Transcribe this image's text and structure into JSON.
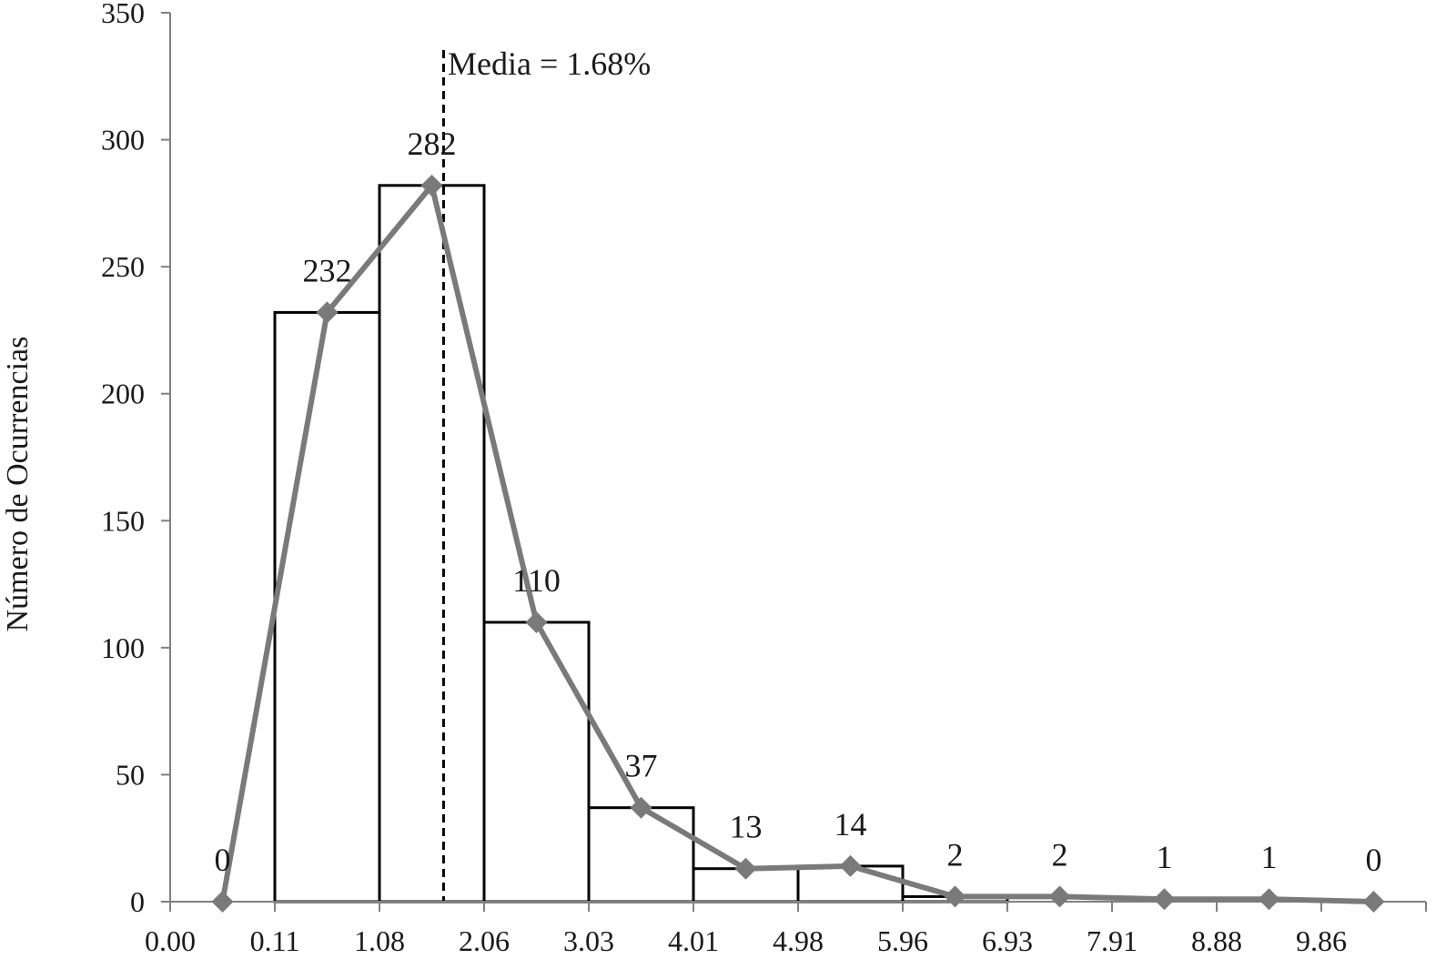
{
  "chart_data": {
    "type": "bar",
    "title": "",
    "xlabel": "",
    "ylabel": "Número de Ocurrencias",
    "ylim": [
      0,
      350
    ],
    "y_ticks": [
      "0",
      "50",
      "100",
      "150",
      "200",
      "250",
      "300",
      "350"
    ],
    "x_ticks": [
      "0.00",
      "0.11",
      "1.08",
      "2.06",
      "3.03",
      "4.01",
      "4.98",
      "5.96",
      "6.93",
      "7.91",
      "8.88",
      "9.86"
    ],
    "bars": [
      {
        "bin": "0.11-1.08",
        "value": 232
      },
      {
        "bin": "1.08-2.06",
        "value": 282
      },
      {
        "bin": "2.06-3.03",
        "value": 110
      },
      {
        "bin": "3.03-4.01",
        "value": 37
      },
      {
        "bin": "4.01-4.98",
        "value": 13
      },
      {
        "bin": "4.98-5.96",
        "value": 14
      },
      {
        "bin": "5.96-6.93",
        "value": 2
      }
    ],
    "series": [
      {
        "type": "line",
        "marker": "diamond",
        "color": "#7a7a7a",
        "values": [
          0,
          232,
          282,
          110,
          37,
          13,
          14,
          2,
          2,
          1,
          1,
          0
        ],
        "labels": [
          "0",
          "232",
          "282",
          "110",
          "37",
          "13",
          "14",
          "2",
          "2",
          "1",
          "1",
          "0"
        ]
      }
    ],
    "annotations": [
      {
        "text": "Media = 1.68%",
        "x": 1.68,
        "line_style": "dashed"
      }
    ],
    "grid": false,
    "legend": "none",
    "bar_fill": "#ffffff",
    "bar_stroke": "#000000"
  }
}
